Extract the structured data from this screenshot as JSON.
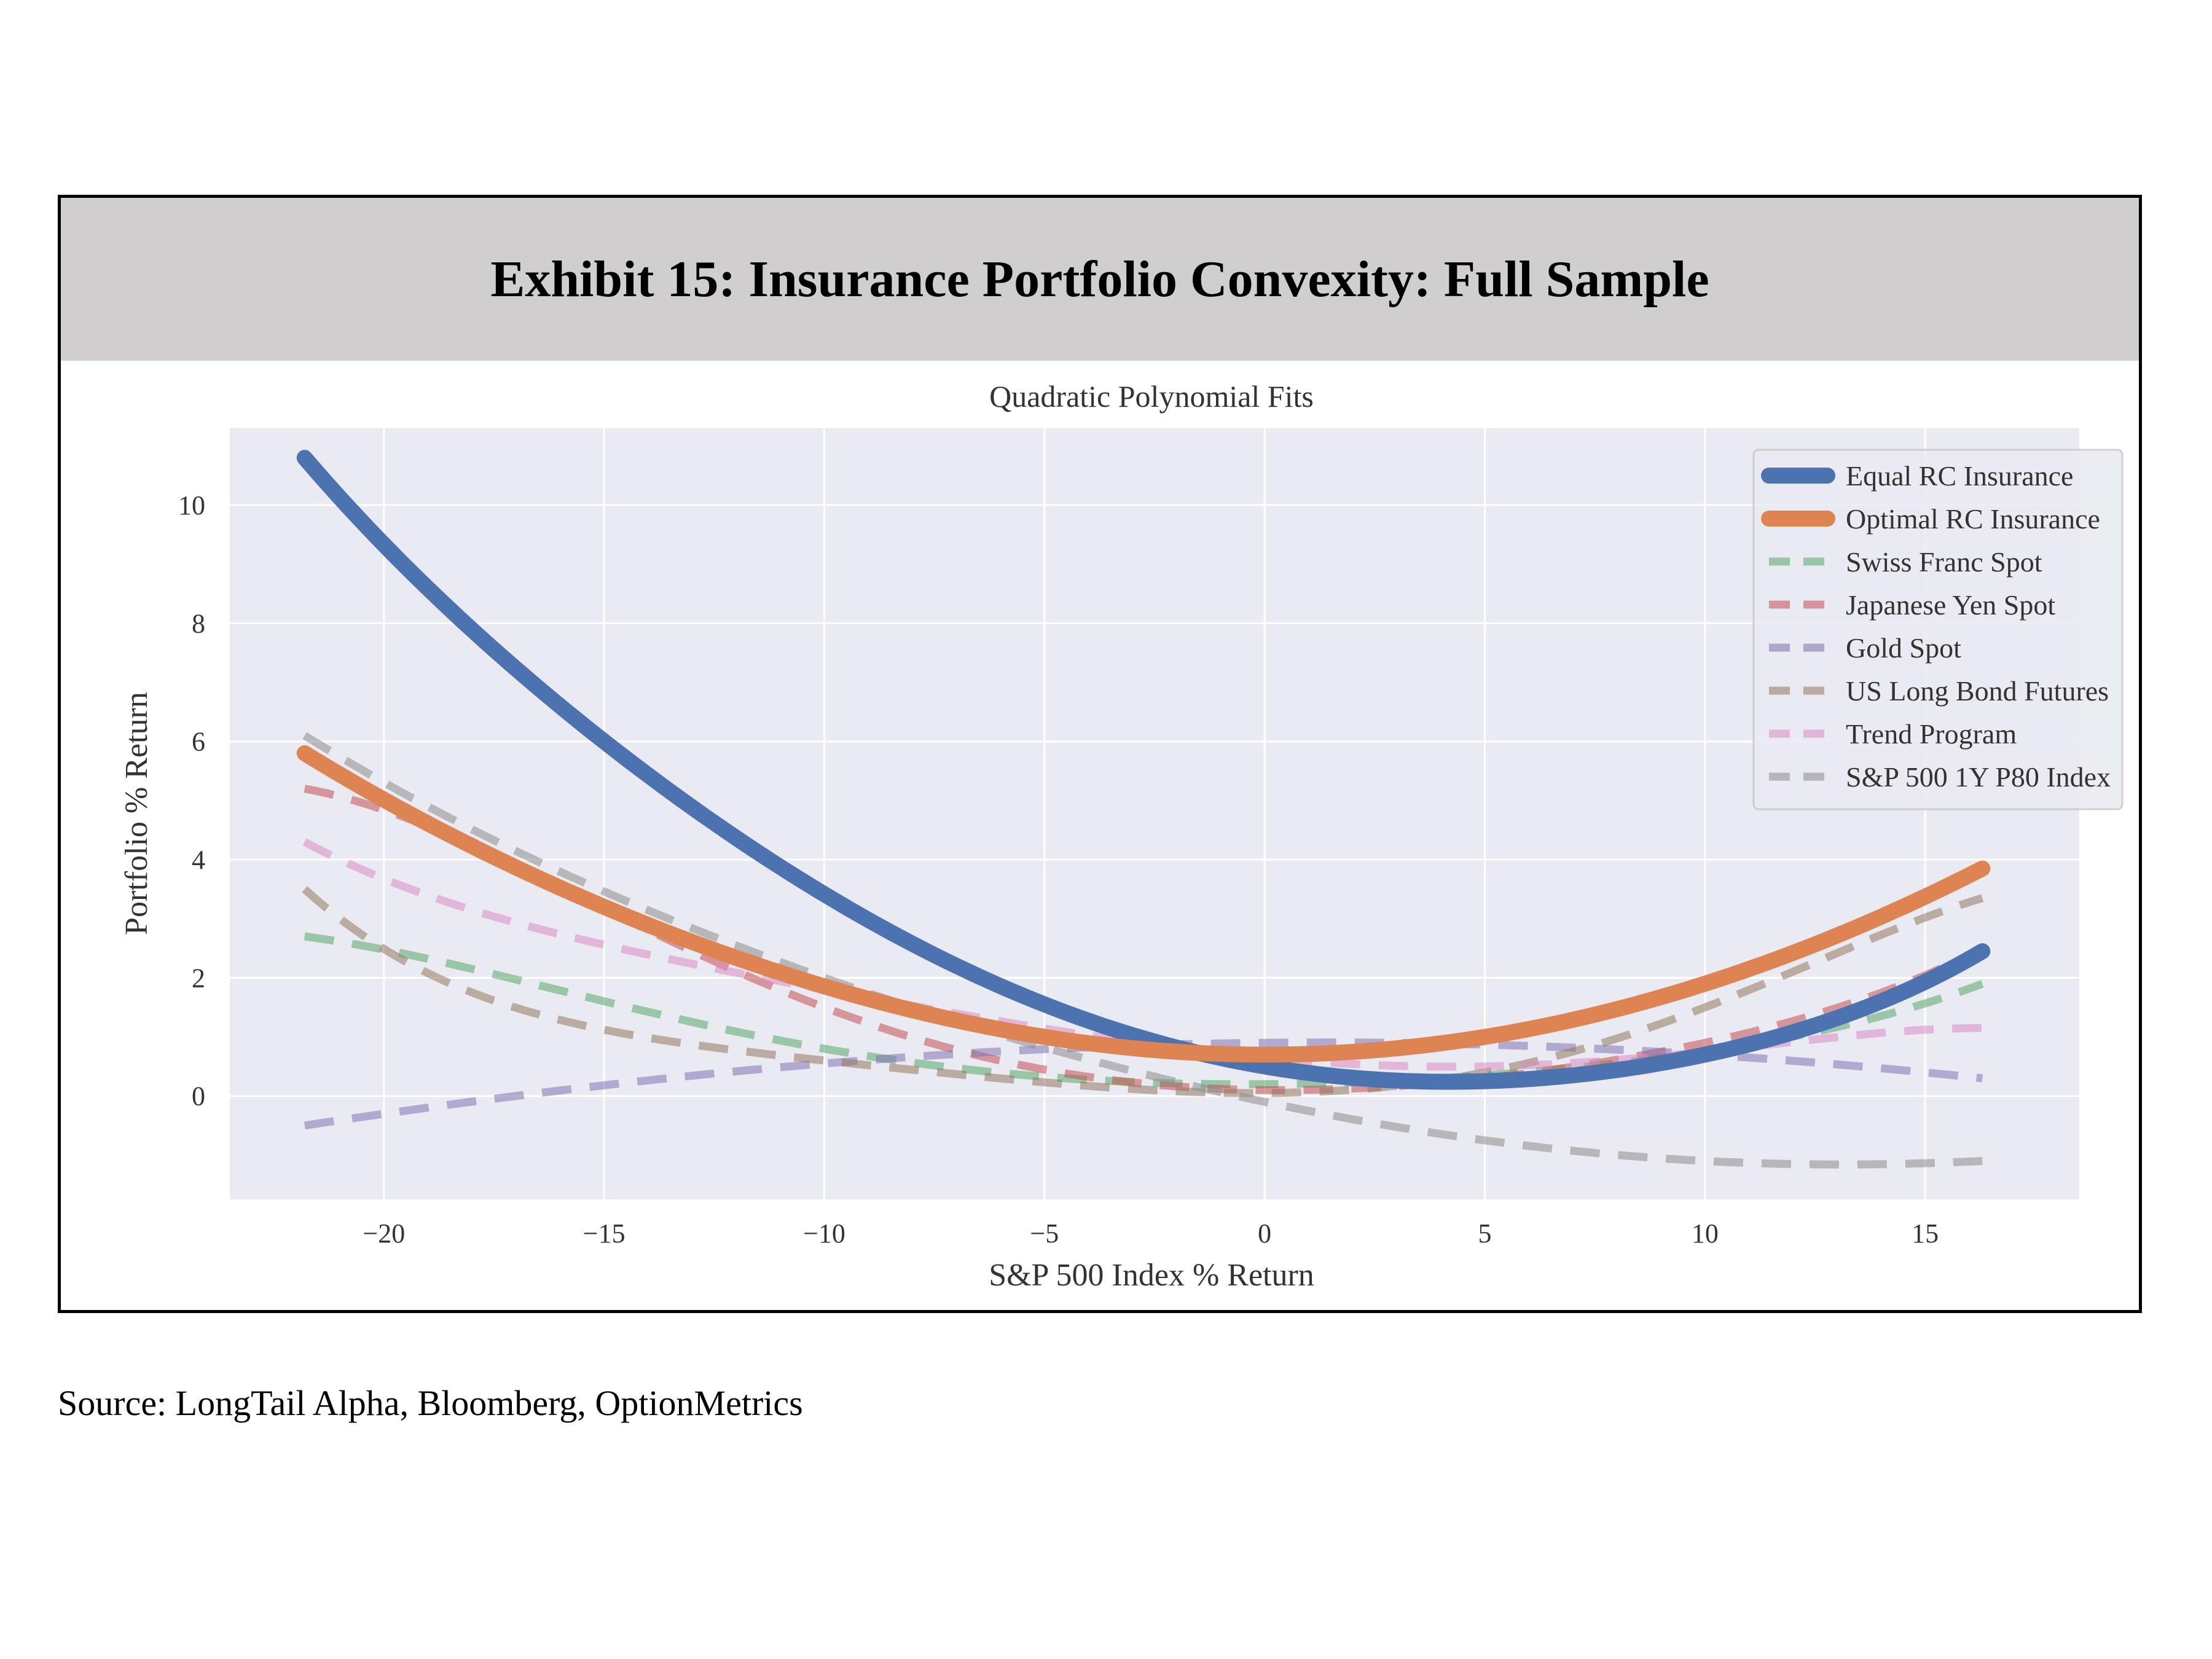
{
  "exhibit": {
    "title": "Exhibit 15: Insurance Portfolio Convexity: Full Sample",
    "source": "Source: LongTail Alpha, Bloomberg, OptionMetrics"
  },
  "colors": {
    "header_bg": "#d0cece",
    "plot_bg": "#eaeaf2",
    "grid": "#ffffff"
  },
  "chart_data": {
    "type": "line",
    "title": "Quadratic Polynomial Fits",
    "xlabel": "S&P 500 Index % Return",
    "ylabel": "Portfolio % Return",
    "xlim": [
      -23.5,
      18.5
    ],
    "ylim": [
      -1.75,
      11.3
    ],
    "x_ticks": [
      -20,
      -15,
      -10,
      -5,
      0,
      5,
      10,
      15
    ],
    "x_tick_labels": [
      "−20",
      "−15",
      "−10",
      "−5",
      "0",
      "5",
      "10",
      "15"
    ],
    "y_ticks": [
      0,
      2,
      4,
      6,
      8,
      10
    ],
    "y_tick_labels": [
      "0",
      "2",
      "4",
      "6",
      "8",
      "10"
    ],
    "x_range": [
      -21.8,
      16.3
    ],
    "grid": true,
    "legend_position": "top-right",
    "series": [
      {
        "name": "Equal RC Insurance",
        "color": "#4c72b0",
        "style": "solid",
        "points": [
          [
            -21.8,
            10.8
          ],
          [
            -15,
            6.0
          ],
          [
            -5,
            1.55
          ],
          [
            0,
            0.5
          ],
          [
            5,
            0.25
          ],
          [
            10,
            0.7
          ],
          [
            16.3,
            2.45
          ]
        ]
      },
      {
        "name": "Optimal RC Insurance",
        "color": "#dd8452",
        "style": "solid",
        "points": [
          [
            -21.8,
            5.8
          ],
          [
            -15,
            3.2
          ],
          [
            -5,
            1.0
          ],
          [
            0,
            0.7
          ],
          [
            5,
            1.0
          ],
          [
            10,
            1.9
          ],
          [
            16.3,
            3.85
          ]
        ]
      },
      {
        "name": "Swiss Franc Spot",
        "color": "#55a868",
        "style": "dashed",
        "points": [
          [
            -21.8,
            2.7
          ],
          [
            -10,
            0.8
          ],
          [
            0,
            0.2
          ],
          [
            5,
            0.35
          ],
          [
            10,
            0.75
          ],
          [
            16.3,
            1.9
          ]
        ]
      },
      {
        "name": "Japanese Yen Spot",
        "color": "#c44e52",
        "style": "dashed",
        "points": [
          [
            -21.8,
            5.2
          ],
          [
            -10,
            1.5
          ],
          [
            0,
            0.1
          ],
          [
            5,
            0.3
          ],
          [
            10,
            0.9
          ],
          [
            16.3,
            2.5
          ]
        ]
      },
      {
        "name": "Gold Spot",
        "color": "#8172b3",
        "style": "dashed",
        "points": [
          [
            -21.8,
            -0.5
          ],
          [
            -10,
            0.55
          ],
          [
            0,
            0.9
          ],
          [
            10,
            0.7
          ],
          [
            16.3,
            0.3
          ]
        ]
      },
      {
        "name": "US Long Bond Futures",
        "color": "#937860",
        "style": "dashed",
        "points": [
          [
            -21.8,
            3.5
          ],
          [
            -10,
            0.6
          ],
          [
            0,
            0.05
          ],
          [
            5,
            0.4
          ],
          [
            10,
            1.5
          ],
          [
            16.3,
            3.35
          ]
        ]
      },
      {
        "name": "Trend Program",
        "color": "#da8bc3",
        "style": "dashed",
        "points": [
          [
            -21.8,
            4.3
          ],
          [
            -10,
            1.8
          ],
          [
            0,
            0.65
          ],
          [
            5,
            0.5
          ],
          [
            10,
            0.75
          ],
          [
            16.3,
            1.15
          ]
        ]
      },
      {
        "name": "S&P 500 1Y P80 Index",
        "color": "#8c8c8c",
        "style": "dashed",
        "points": [
          [
            -21.8,
            6.1
          ],
          [
            -10,
            2.0
          ],
          [
            0,
            -0.1
          ],
          [
            5,
            -0.75
          ],
          [
            10,
            -1.1
          ],
          [
            16.3,
            -1.1
          ]
        ]
      }
    ]
  }
}
